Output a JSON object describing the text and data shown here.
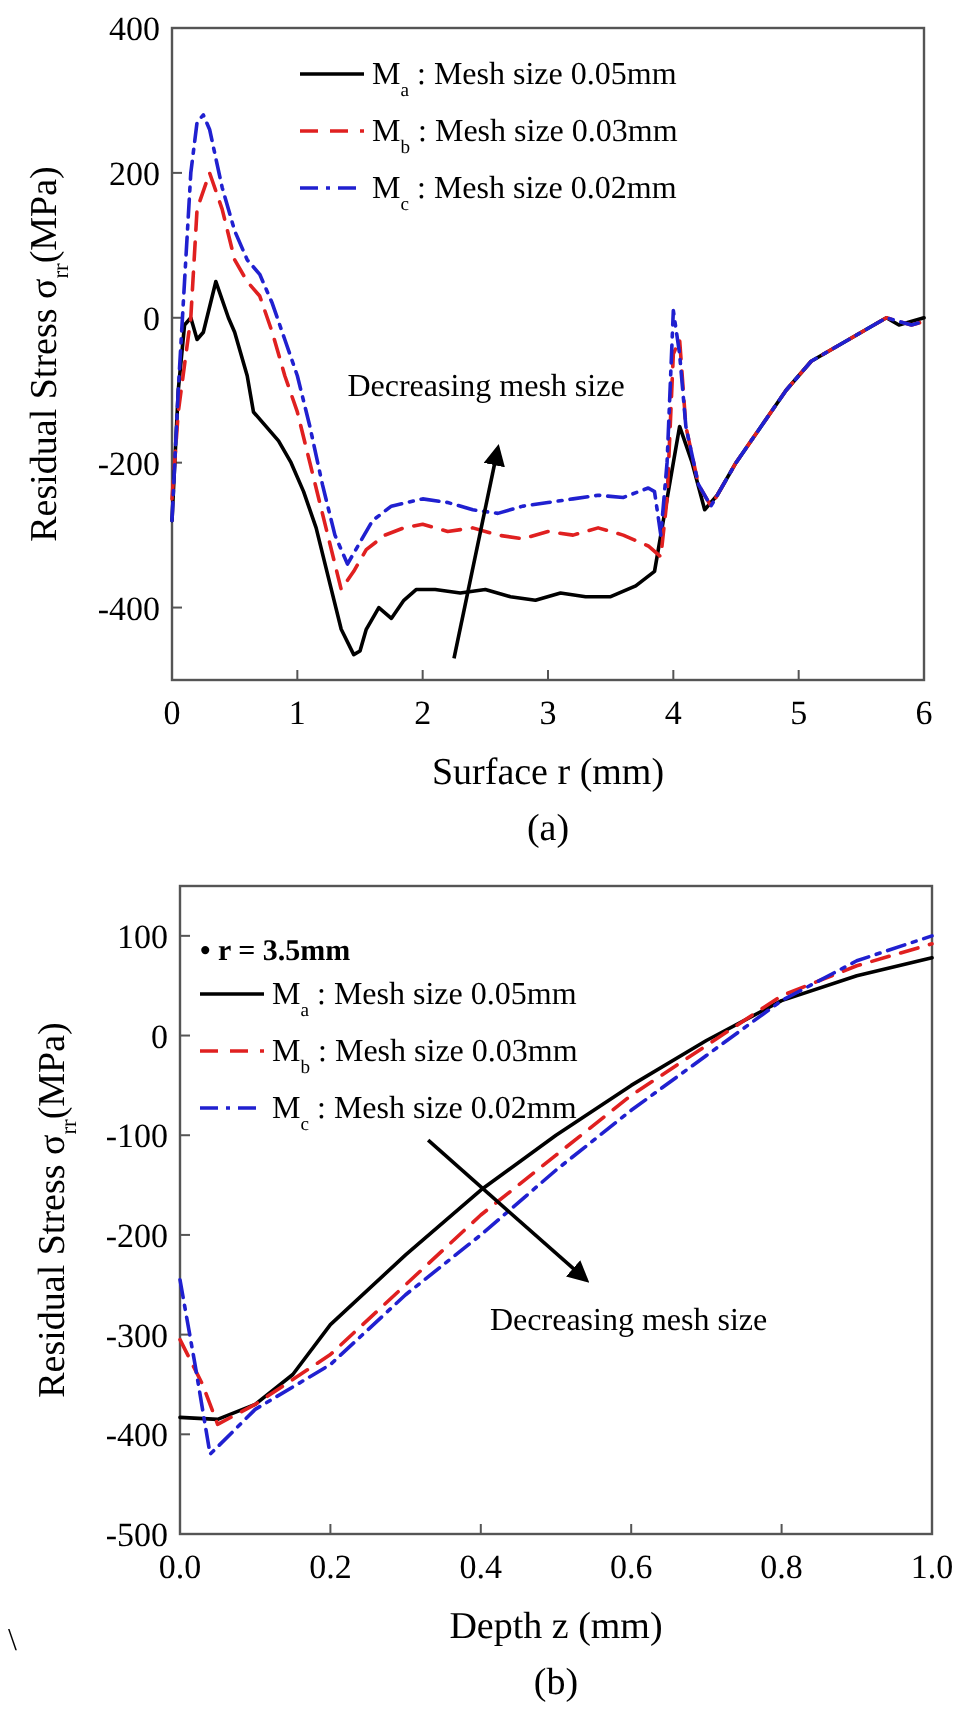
{
  "chart_data": [
    {
      "type": "line",
      "title": "(a)",
      "xlabel": "Surface r (mm)",
      "ylabel": "Residual Stress σ$_{rr}$(MPa)",
      "xlim": [
        0,
        6
      ],
      "xticks": [
        0,
        1,
        2,
        3,
        4,
        5,
        6
      ],
      "ylim": [
        -500,
        400
      ],
      "yticks": [
        -400,
        -200,
        0,
        200,
        400
      ],
      "legend": "top",
      "grid": false,
      "annotations": [
        "Decreasing mesh size"
      ],
      "series": [
        {
          "name": "M$_{a}$ : Mesh size 0.05mm",
          "color": "#000000",
          "line_style": "solid",
          "x": [
            0,
            0.05,
            0.1,
            0.15,
            0.2,
            0.25,
            0.35,
            0.45,
            0.5,
            0.6,
            0.65,
            0.75,
            0.85,
            0.95,
            1.05,
            1.15,
            1.25,
            1.35,
            1.45,
            1.5,
            1.55,
            1.65,
            1.75,
            1.85,
            1.95,
            2.1,
            2.3,
            2.5,
            2.7,
            2.9,
            3.1,
            3.3,
            3.5,
            3.7,
            3.85,
            3.95,
            4.05,
            4.15,
            4.25,
            4.35,
            4.5,
            4.7,
            4.9,
            5.1,
            5.3,
            5.5,
            5.7,
            5.8,
            6
          ],
          "values": [
            -280,
            -100,
            -10,
            0,
            -30,
            -20,
            50,
            0,
            -20,
            -80,
            -130,
            -150,
            -170,
            -200,
            -240,
            -290,
            -360,
            -430,
            -465,
            -460,
            -430,
            -400,
            -415,
            -390,
            -375,
            -375,
            -380,
            -375,
            -385,
            -390,
            -380,
            -385,
            -385,
            -370,
            -350,
            -250,
            -150,
            -200,
            -265,
            -245,
            -200,
            -150,
            -100,
            -60,
            -40,
            -20,
            0,
            -10,
            0
          ]
        },
        {
          "name": "M$_{b}$ : Mesh size 0.03mm",
          "color": "#e02020",
          "line_style": "dashed",
          "x": [
            0,
            0.05,
            0.15,
            0.2,
            0.3,
            0.4,
            0.5,
            0.6,
            0.7,
            0.8,
            0.9,
            1.0,
            1.1,
            1.2,
            1.3,
            1.35,
            1.45,
            1.55,
            1.7,
            1.85,
            2.0,
            2.2,
            2.4,
            2.6,
            2.8,
            3.0,
            3.2,
            3.4,
            3.6,
            3.8,
            3.9,
            3.95,
            4.0,
            4.05,
            4.1,
            4.2,
            4.3,
            4.5,
            4.7,
            4.9,
            5.1,
            5.3,
            5.5,
            5.7,
            5.9,
            6
          ],
          "values": [
            -250,
            -130,
            0,
            150,
            200,
            150,
            80,
            50,
            30,
            -20,
            -80,
            -130,
            -200,
            -270,
            -340,
            -375,
            -350,
            -320,
            -300,
            -290,
            -285,
            -295,
            -290,
            -300,
            -305,
            -295,
            -300,
            -290,
            -300,
            -315,
            -330,
            -250,
            -50,
            -30,
            -150,
            -230,
            -260,
            -200,
            -150,
            -100,
            -60,
            -40,
            -20,
            0,
            -10,
            -5
          ]
        },
        {
          "name": "M$_{c}$ : Mesh size 0.02mm",
          "color": "#2020d0",
          "line_style": "dashdot",
          "x": [
            0,
            0.05,
            0.1,
            0.15,
            0.2,
            0.25,
            0.3,
            0.4,
            0.5,
            0.6,
            0.7,
            0.8,
            0.9,
            1.0,
            1.1,
            1.2,
            1.3,
            1.4,
            1.5,
            1.6,
            1.75,
            2.0,
            2.2,
            2.4,
            2.6,
            2.8,
            3.0,
            3.2,
            3.4,
            3.6,
            3.8,
            3.85,
            3.9,
            3.95,
            4.0,
            4.05,
            4.1,
            4.2,
            4.3,
            4.5,
            4.7,
            4.9,
            5.1,
            5.3,
            5.5,
            5.7,
            5.9,
            6
          ],
          "values": [
            -280,
            -100,
            50,
            200,
            270,
            280,
            260,
            180,
            120,
            80,
            60,
            20,
            -30,
            -80,
            -150,
            -230,
            -300,
            -340,
            -310,
            -280,
            -260,
            -250,
            -255,
            -265,
            -270,
            -260,
            -255,
            -250,
            -245,
            -248,
            -235,
            -240,
            -300,
            -200,
            10,
            -50,
            -150,
            -230,
            -260,
            -200,
            -150,
            -100,
            -60,
            -40,
            -20,
            0,
            -10,
            -5
          ]
        }
      ]
    },
    {
      "type": "line",
      "title": "(b)",
      "xlabel": "Depth z (mm)",
      "ylabel": "Residual Stress σ$_{rr}$(MPa)",
      "legend_title": "• r = 3.5mm",
      "xlim": [
        0,
        1
      ],
      "xticks": [
        {
          "value": 0,
          "label": "0.0"
        },
        0.2,
        0.4,
        0.6,
        0.8,
        {
          "value": 1,
          "label": "1.0"
        }
      ],
      "ylim": [
        -500,
        150
      ],
      "yticks": [
        -500,
        -400,
        -300,
        -200,
        -100,
        0,
        100
      ],
      "legend": "top left",
      "grid": false,
      "annotations": [
        "Decreasing mesh size",
        "\\"
      ],
      "series": [
        {
          "name": "M$_{a}$ : Mesh size 0.05mm",
          "color": "#000000",
          "line_style": "solid",
          "x": [
            0,
            0.05,
            0.1,
            0.15,
            0.2,
            0.3,
            0.4,
            0.5,
            0.6,
            0.7,
            0.8,
            0.9,
            1.0
          ],
          "values": [
            -383,
            -385,
            -370,
            -340,
            -290,
            -220,
            -155,
            -100,
            -50,
            -5,
            35,
            60,
            78
          ]
        },
        {
          "name": "M$_{b}$ : Mesh size 0.03mm",
          "color": "#e02020",
          "line_style": "dashed",
          "x": [
            0,
            0.03,
            0.05,
            0.1,
            0.2,
            0.3,
            0.4,
            0.5,
            0.6,
            0.7,
            0.8,
            0.9,
            1.0
          ],
          "values": [
            -305,
            -350,
            -390,
            -370,
            -320,
            -250,
            -180,
            -120,
            -60,
            -10,
            40,
            70,
            92
          ]
        },
        {
          "name": "M$_{c}$ : Mesh size 0.02mm",
          "color": "#2020d0",
          "line_style": "dashdot",
          "x": [
            0,
            0.02,
            0.04,
            0.1,
            0.2,
            0.3,
            0.4,
            0.5,
            0.6,
            0.7,
            0.8,
            0.9,
            1.0
          ],
          "values": [
            -245,
            -330,
            -420,
            -375,
            -330,
            -260,
            -200,
            -135,
            -75,
            -20,
            35,
            75,
            100
          ]
        }
      ]
    }
  ]
}
